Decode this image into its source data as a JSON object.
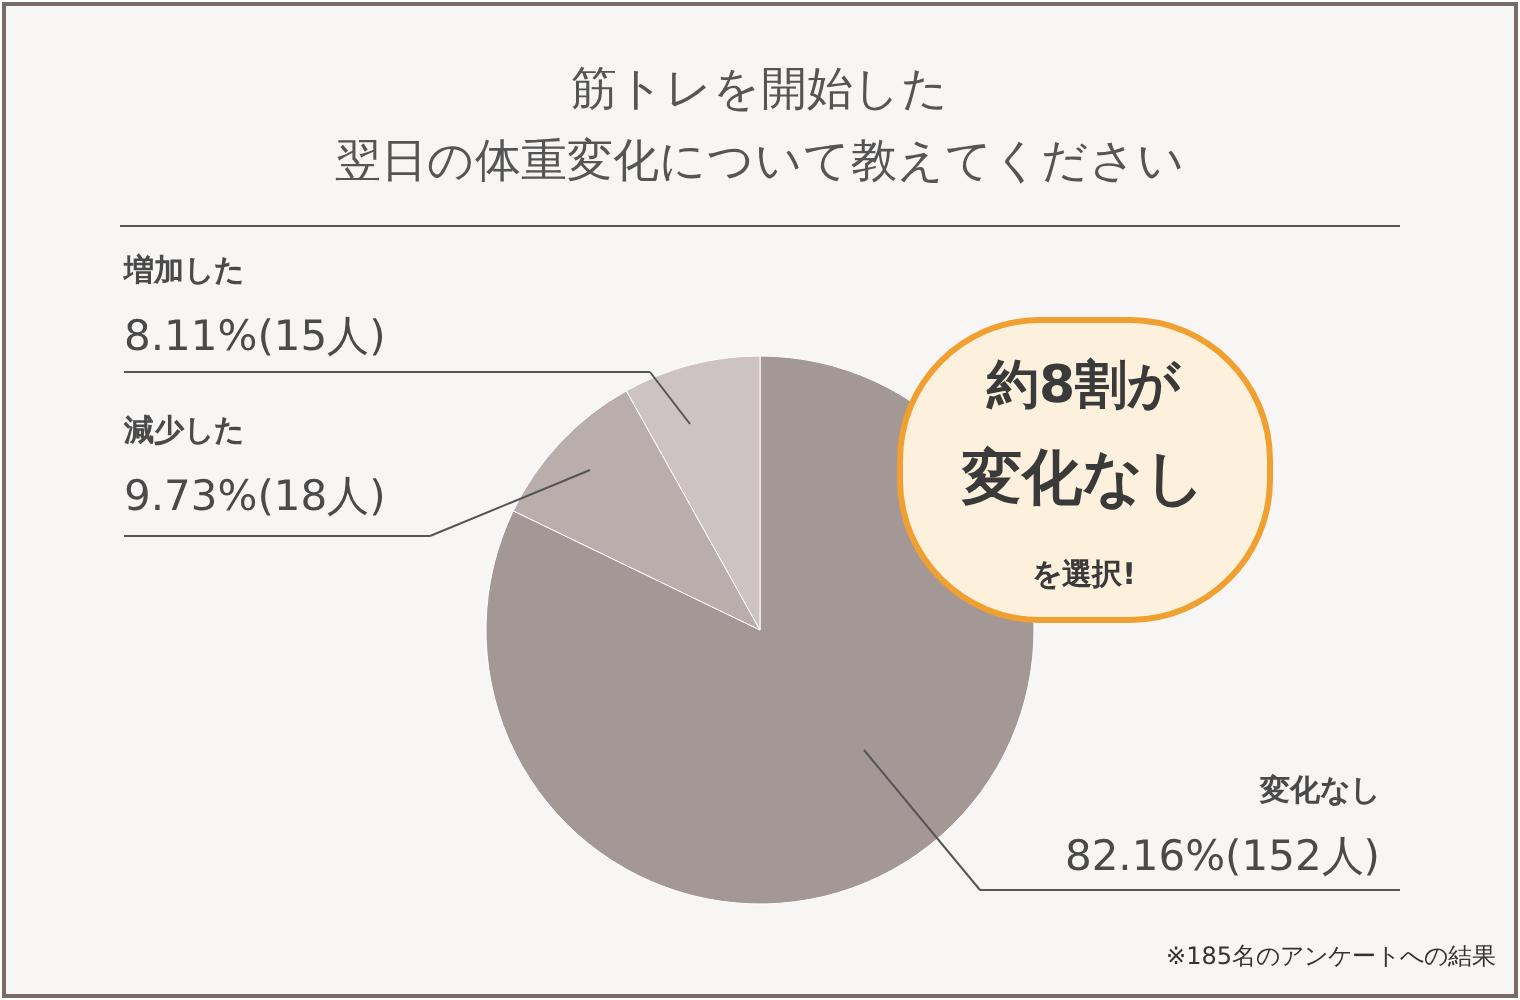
{
  "chart_data": {
    "type": "pie",
    "title": "筋トレを開始した",
    "subtitle": "翌日の体重変化について教えてください",
    "categories": [
      "変化なし",
      "減少した",
      "増加した"
    ],
    "values": [
      82.16,
      9.73,
      8.11
    ],
    "value_labels": [
      "82.16%(152人)",
      "9.73%(18人)",
      "8.11%(15人)"
    ],
    "colors": [
      "#a49896",
      "#b9aeac",
      "#cdc3c2"
    ],
    "annotations": [
      "約8割が",
      "変化なし",
      "を選択!",
      "※185名のアンケートへの結果"
    ]
  }
}
